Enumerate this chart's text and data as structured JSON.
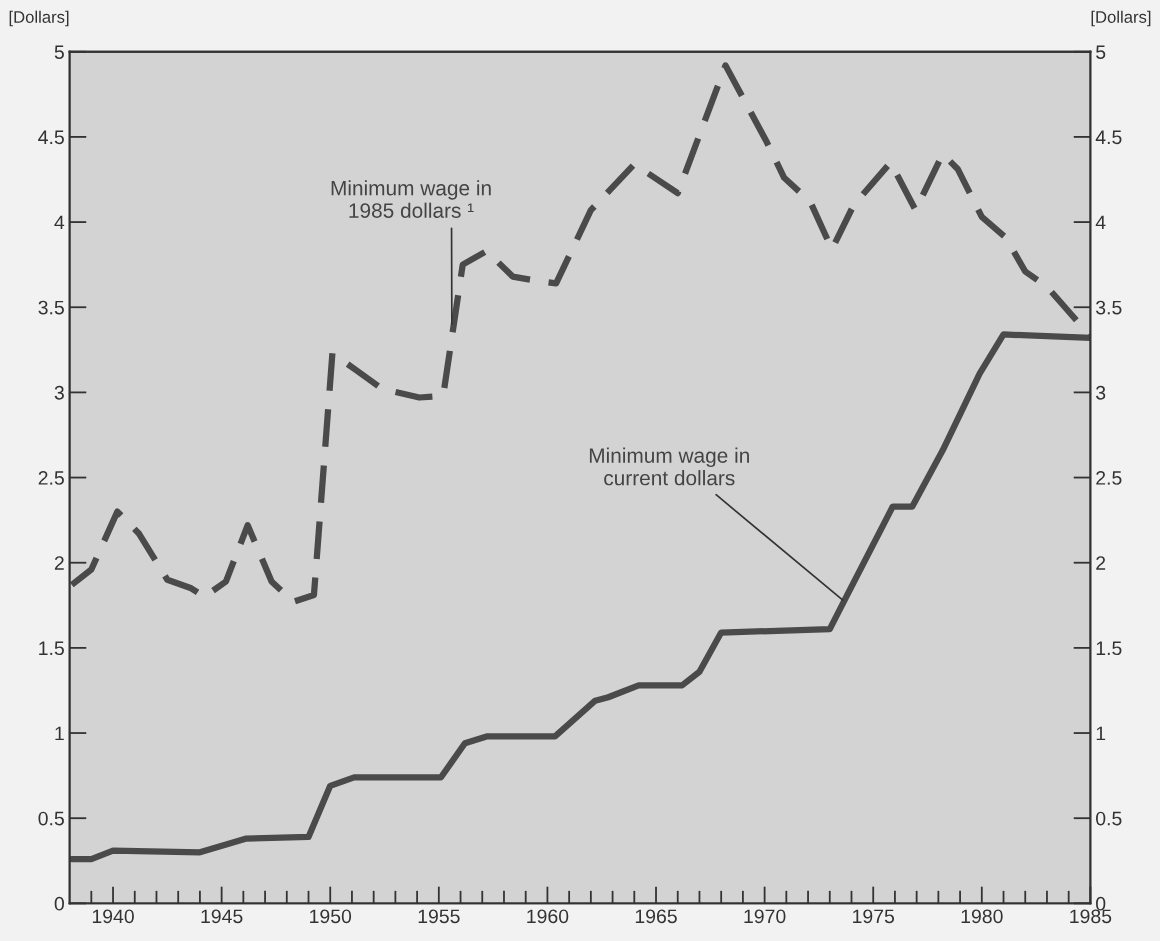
{
  "chart_data": {
    "type": "line",
    "ylabel": "[Dollars]",
    "y2label": "[Dollars]",
    "xlim": [
      1938,
      1985
    ],
    "xticks": [
      {
        "value": 1939,
        "label": null
      },
      1940,
      {
        "value": 1941,
        "label": null
      },
      {
        "value": 1942,
        "label": null
      },
      {
        "value": 1943,
        "label": null
      },
      {
        "value": 1944,
        "label": null
      },
      1945,
      {
        "value": 1946,
        "label": null
      },
      {
        "value": 1947,
        "label": null
      },
      {
        "value": 1948,
        "label": null
      },
      {
        "value": 1949,
        "label": null
      },
      1950,
      {
        "value": 1951,
        "label": null
      },
      {
        "value": 1952,
        "label": null
      },
      {
        "value": 1953,
        "label": null
      },
      {
        "value": 1954,
        "label": null
      },
      1955,
      {
        "value": 1956,
        "label": null
      },
      {
        "value": 1957,
        "label": null
      },
      {
        "value": 1958,
        "label": null
      },
      {
        "value": 1959,
        "label": null
      },
      1960,
      {
        "value": 1961,
        "label": null
      },
      {
        "value": 1962,
        "label": null
      },
      {
        "value": 1963,
        "label": null
      },
      {
        "value": 1964,
        "label": null
      },
      1965,
      {
        "value": 1966,
        "label": null
      },
      {
        "value": 1967,
        "label": null
      },
      {
        "value": 1968,
        "label": null
      },
      {
        "value": 1969,
        "label": null
      },
      1970,
      {
        "value": 1971,
        "label": null
      },
      {
        "value": 1972,
        "label": null
      },
      {
        "value": 1973,
        "label": null
      },
      {
        "value": 1974,
        "label": null
      },
      1975,
      {
        "value": 1976,
        "label": null
      },
      {
        "value": 1977,
        "label": null
      },
      {
        "value": 1978,
        "label": null
      },
      {
        "value": 1979,
        "label": null
      },
      1980,
      {
        "value": 1981,
        "label": null
      },
      {
        "value": 1982,
        "label": null
      },
      {
        "value": 1983,
        "label": null
      },
      {
        "value": 1984,
        "label": null
      },
      1985
    ],
    "ylim": [
      0,
      5
    ],
    "yticks": [
      0,
      0.5,
      1,
      1.5,
      2,
      2.5,
      3,
      3.5,
      4,
      4.5,
      5
    ],
    "y2lim": [
      0,
      5
    ],
    "y2ticks": [
      0,
      0.5,
      1,
      1.5,
      2,
      2.5,
      3,
      3.5,
      4,
      4.5,
      5
    ],
    "grid": false,
    "legend": false,
    "marker": "none",
    "series": [
      {
        "color": "#4a4a4a",
        "line_style": "dashed",
        "x": [
          1938.1,
          1939.0,
          1940.2,
          1941.2,
          1942.5,
          1943.6,
          1944.2,
          1945.2,
          1946.2,
          1947.3,
          1948.3,
          1949.25,
          1950.1,
          1951.2,
          1952.4,
          1954.1,
          1955.2,
          1956.1,
          1957.2,
          1958.4,
          1959.3,
          1960.4,
          1962.0,
          1964.0,
          1966.0,
          1968.2,
          1970.1,
          1970.9,
          1972.1,
          1973.1,
          1974.1,
          1975.8,
          1976.95,
          1978.2,
          1978.9,
          1980.0,
          1981.1,
          1982.0,
          1983.0,
          1985.0
        ],
        "values": [
          1.87,
          1.96,
          2.3,
          2.17,
          1.9,
          1.85,
          1.8,
          1.89,
          2.22,
          1.89,
          1.77,
          1.81,
          3.23,
          3.13,
          3.02,
          2.97,
          2.98,
          3.75,
          3.83,
          3.68,
          3.66,
          3.64,
          4.07,
          4.34,
          4.17,
          4.92,
          4.47,
          4.26,
          4.12,
          3.84,
          4.1,
          4.35,
          4.07,
          4.4,
          4.31,
          4.03,
          3.91,
          3.71,
          3.62,
          3.33
        ]
      },
      {
        "color": "#4a4a4a",
        "line_style": "solid",
        "x": [
          1938.1,
          1939.0,
          1940.0,
          1944.0,
          1946.1,
          1949.0,
          1950.0,
          1951.1,
          1955.1,
          1956.2,
          1957.2,
          1960.35,
          1962.2,
          1962.8,
          1964.2,
          1966.2,
          1967.0,
          1968.0,
          1973.0,
          1973.8,
          1975.9,
          1976.8,
          1978.2,
          1979.9,
          1981.0,
          1985.0
        ],
        "values": [
          0.26,
          0.26,
          0.31,
          0.3,
          0.38,
          0.39,
          0.69,
          0.74,
          0.74,
          0.94,
          0.98,
          0.98,
          1.19,
          1.21,
          1.28,
          1.28,
          1.36,
          1.59,
          1.61,
          1.81,
          2.33,
          2.33,
          2.66,
          3.11,
          3.34,
          3.32
        ]
      }
    ],
    "annotations": [
      {
        "text": "Minimum wage in\n1985 dollars ¹",
        "x": 1955.6,
        "y": 3.4
      },
      {
        "text": "Minimum wage in\ncurrent dollars",
        "x": 1973.6,
        "y": 1.78
      }
    ]
  }
}
